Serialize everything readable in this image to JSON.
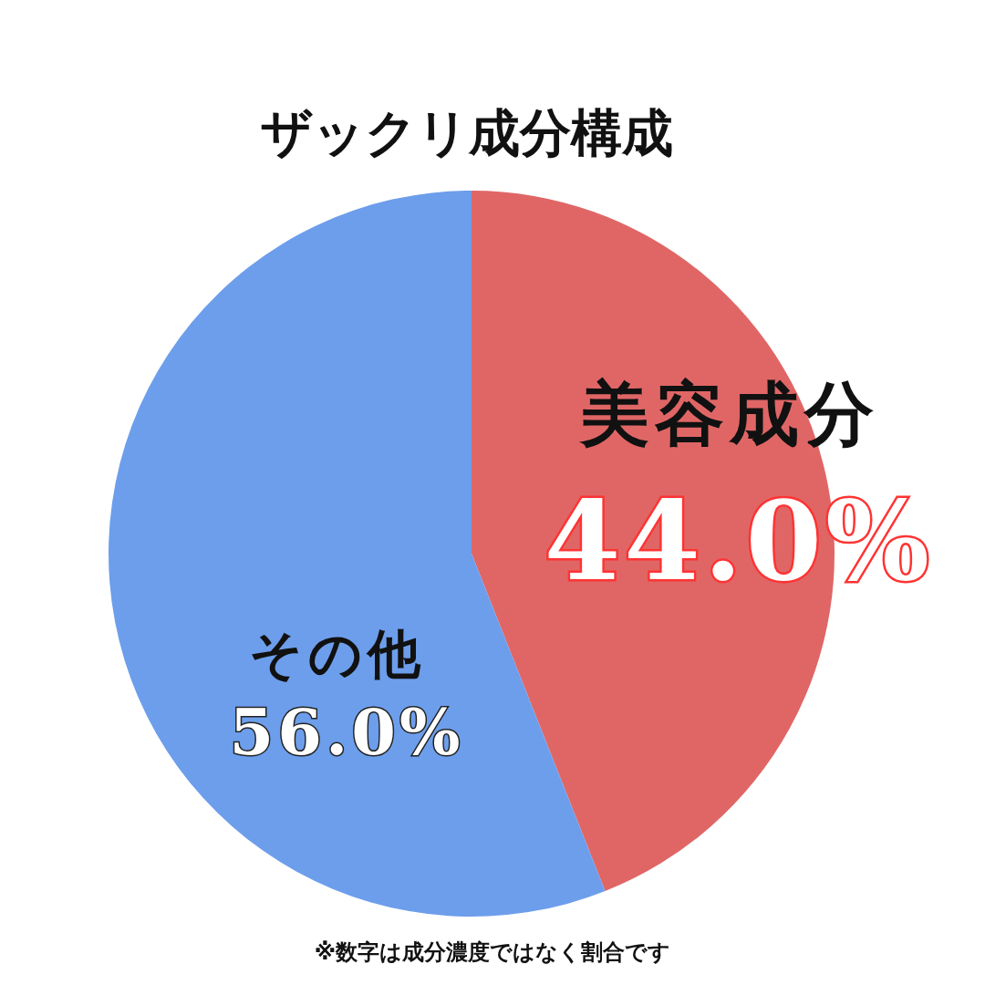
{
  "chart_data": {
    "type": "pie",
    "title": "ザックリ成分構成",
    "categories": [
      "美容成分",
      "その他"
    ],
    "values": [
      44.0,
      56.0
    ],
    "colors": [
      "#e06666",
      "#6d9eeb"
    ],
    "value_labels": [
      "44.0%",
      "56.0%"
    ],
    "annotations": [
      "※数字は成分濃度ではなく割合です"
    ],
    "legend": false
  }
}
